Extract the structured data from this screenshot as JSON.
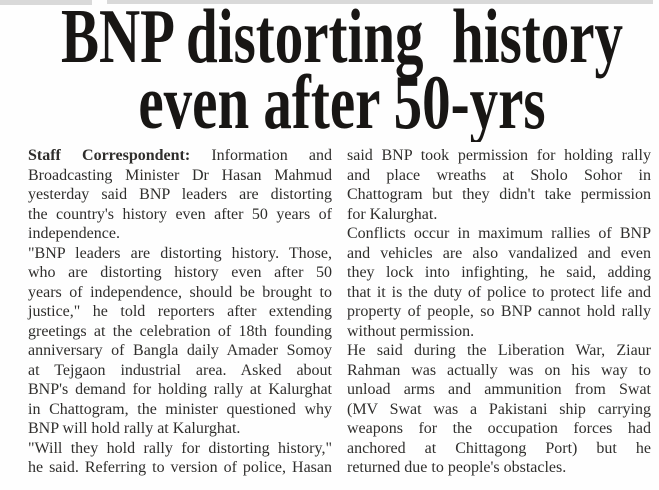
{
  "page": {
    "background_color": "#fefefe",
    "scan_edge_color": "#d9d9d9"
  },
  "headline": {
    "line1": "BNP distorting  history",
    "line2": "even after 50-yrs",
    "color": "#181614"
  },
  "body": {
    "text_color": "#2f2e2c",
    "byline_label": "Staff Correspondent:",
    "byline_rest": " Information and",
    "left_lines": [
      "Broadcasting Minister Dr Hasan Mahmud",
      "yesterday said BNP leaders are distorting",
      "the country's history even after 50 years of",
      "independence.",
      "\"BNP leaders are distorting history. Those,",
      "who are distorting history even after 50",
      "years of independence, should be brought to",
      "justice,\" he told reporters after extending",
      "greetings at the celebration of 18th founding",
      "anniversary of Bangla daily Amader Somoy",
      "at Tejgaon industrial area. Asked about",
      "BNP's demand for holding rally at Kalurghat",
      "in Chattogram, the minister questioned why",
      "BNP will hold rally at Kalurghat.",
      "\"Will they hold rally for distorting history,\"",
      "he said. Referring to version of police, Hasan"
    ],
    "right_lines": [
      "said BNP took permission for holding rally",
      "and place wreaths at Sholo Sohor in",
      "Chattogram but they didn't take permission",
      "for Kalurghat.",
      "Conflicts occur in maximum rallies of BNP",
      "and vehicles are also vandalized and even",
      "they lock into infighting, he said, adding",
      "that it is the duty of police to protect life and",
      "property of people, so BNP cannot hold rally",
      "without permission.",
      "He said during the Liberation War, Ziaur",
      "Rahman was actually was on his way to",
      "unload arms and ammunition from Swat",
      "(MV Swat was a Pakistani ship carrying",
      "weapons for the occupation forces had",
      "anchored at Chittagong Port) but he",
      "returned due to people's obstacles."
    ]
  }
}
